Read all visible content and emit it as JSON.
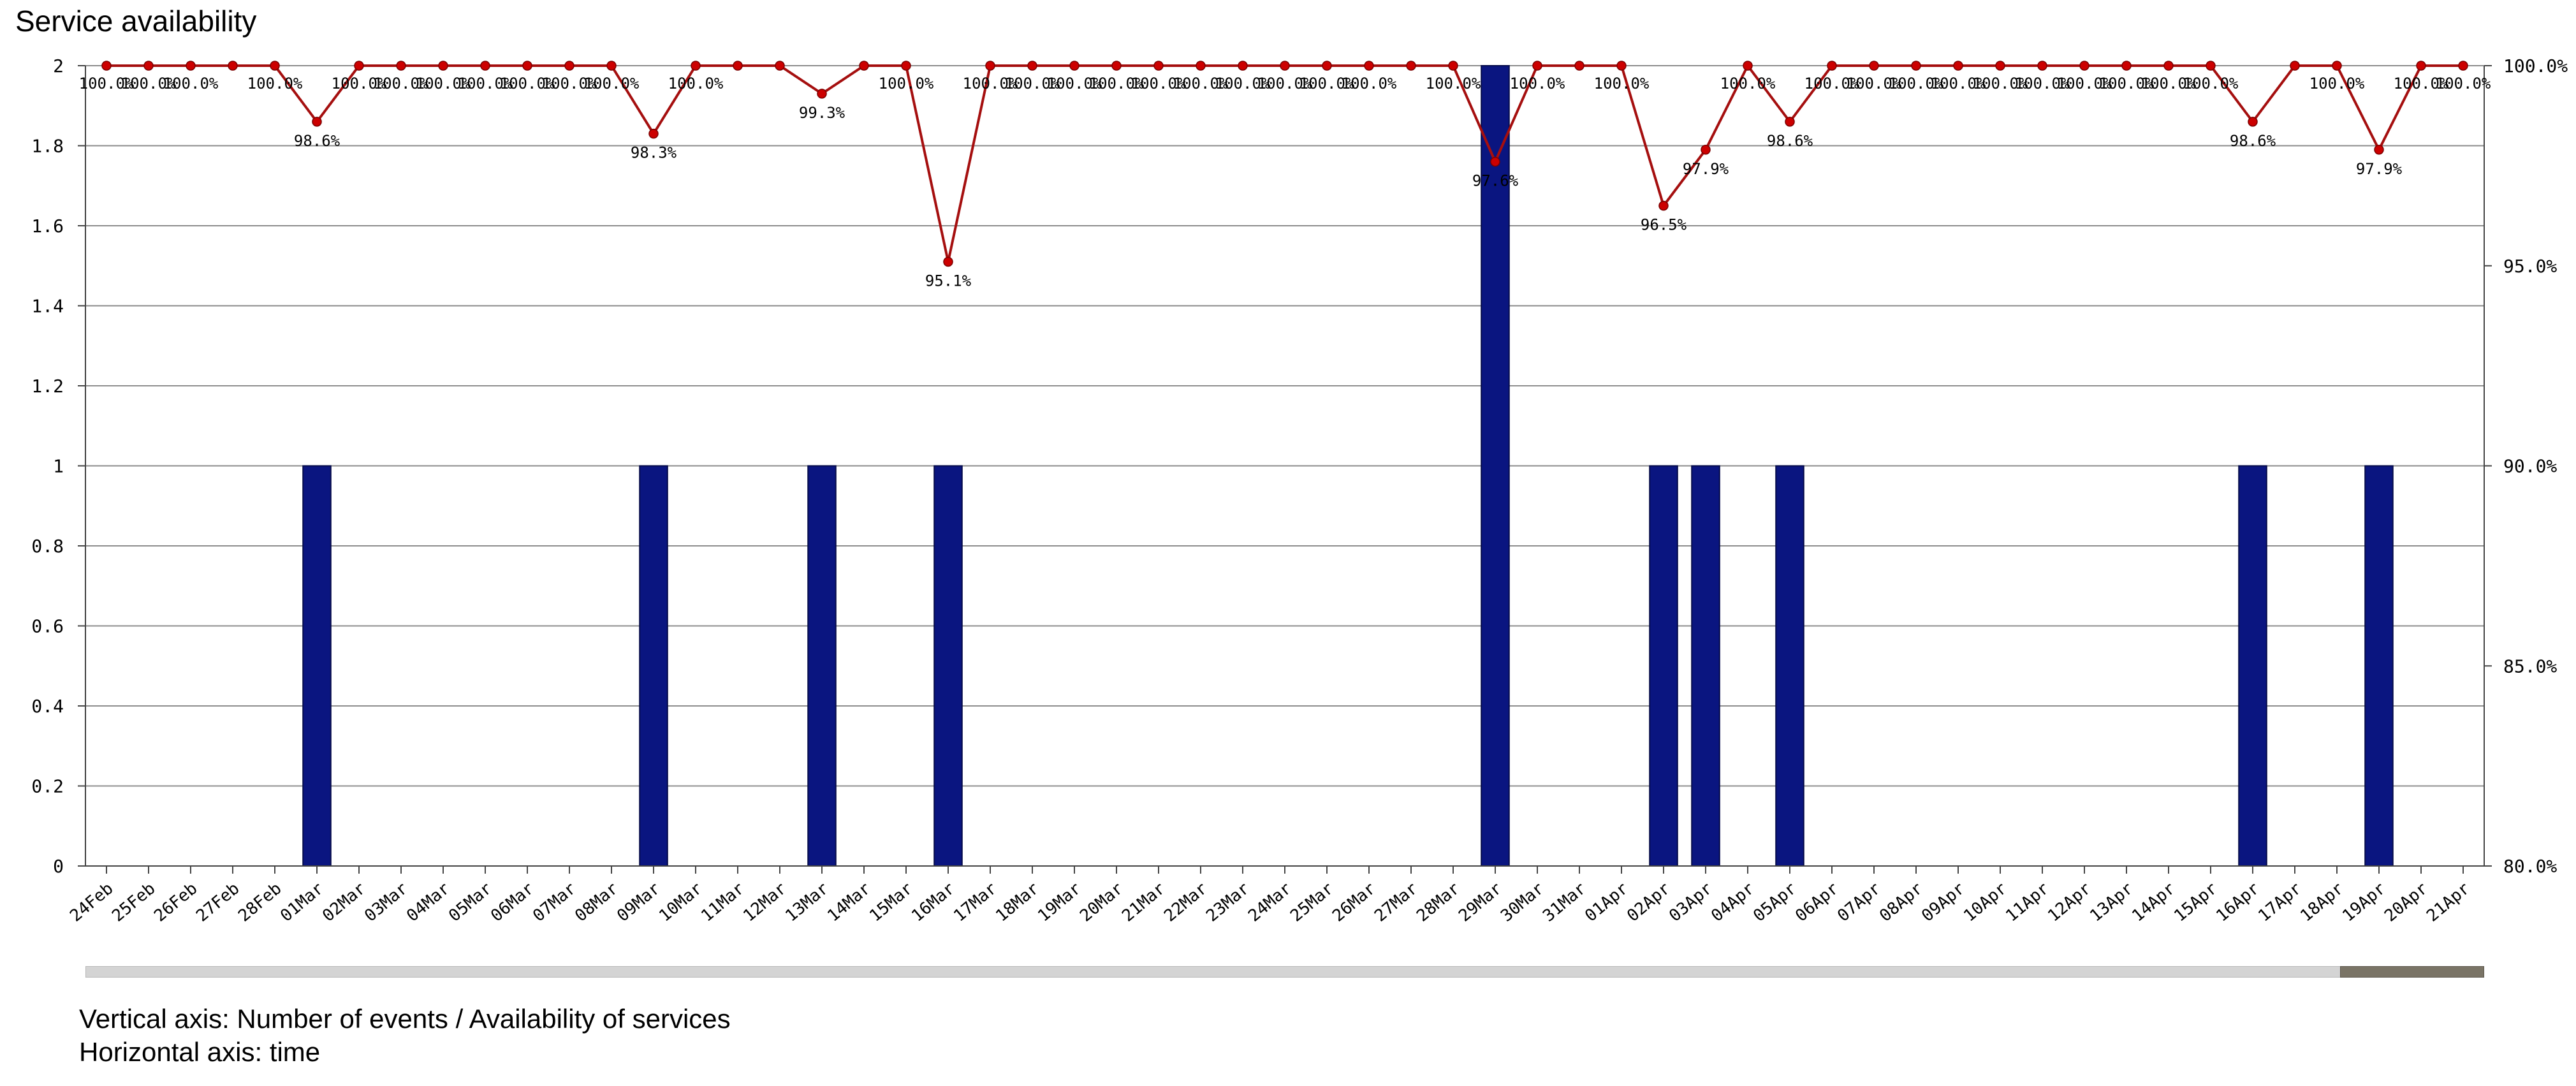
{
  "chart_data": {
    "type": "bar+line",
    "title": "Service availability",
    "categories": [
      "24Feb",
      "25Feb",
      "26Feb",
      "27Feb",
      "28Feb",
      "01Mar",
      "02Mar",
      "03Mar",
      "04Mar",
      "05Mar",
      "06Mar",
      "07Mar",
      "08Mar",
      "09Mar",
      "10Mar",
      "11Mar",
      "12Mar",
      "13Mar",
      "14Mar",
      "15Mar",
      "16Mar",
      "17Mar",
      "18Mar",
      "19Mar",
      "20Mar",
      "21Mar",
      "22Mar",
      "23Mar",
      "24Mar",
      "25Mar",
      "26Mar",
      "27Mar",
      "28Mar",
      "29Mar",
      "30Mar",
      "31Mar",
      "01Apr",
      "02Apr",
      "03Apr",
      "04Apr",
      "05Apr",
      "06Apr",
      "07Apr",
      "08Apr",
      "09Apr",
      "10Apr",
      "11Apr",
      "12Apr",
      "13Apr",
      "14Apr",
      "15Apr",
      "16Apr",
      "17Apr",
      "18Apr",
      "19Apr",
      "20Apr",
      "21Apr"
    ],
    "series": [
      {
        "type": "bar",
        "axis": "left",
        "values": [
          0,
          0,
          0,
          0,
          0,
          1,
          0,
          0,
          0,
          0,
          0,
          0,
          0,
          1,
          0,
          0,
          0,
          1,
          0,
          0,
          1,
          0,
          0,
          0,
          0,
          0,
          0,
          0,
          0,
          0,
          0,
          0,
          0,
          2,
          0,
          0,
          0,
          1,
          1,
          0,
          1,
          0,
          0,
          0,
          0,
          0,
          0,
          0,
          0,
          0,
          0,
          1,
          0,
          0,
          1,
          0,
          0
        ]
      },
      {
        "type": "line",
        "axis": "right",
        "values": [
          100,
          100,
          100,
          100,
          100,
          98.6,
          100,
          100,
          100,
          100,
          100,
          100,
          100,
          98.3,
          100,
          100,
          100,
          99.3,
          100,
          100,
          95.1,
          100,
          100,
          100,
          100,
          100,
          100,
          100,
          100,
          100,
          100,
          100,
          100,
          97.6,
          100,
          100,
          100,
          96.5,
          97.9,
          100,
          98.6,
          100,
          100,
          100,
          100,
          100,
          100,
          100,
          100,
          100,
          100,
          98.6,
          100,
          100,
          97.9,
          100,
          100
        ],
        "labels": [
          "100.0%",
          "100.0%",
          "100.0%",
          "",
          "100.0%",
          "98.6%",
          "100.0%",
          "100.0%",
          "100.0%",
          "100.0%",
          "100.0%",
          "100.0%",
          "100.0%",
          "98.3%",
          "100.0%",
          "",
          "",
          "99.3%",
          "",
          "100.0%",
          "95.1%",
          "100.0%",
          "100.0%",
          "100.0%",
          "100.0%",
          "100.0%",
          "100.0%",
          "100.0%",
          "100.0%",
          "100.0%",
          "100.0%",
          "",
          "100.0%",
          "97.6%",
          "100.0%",
          "",
          "100.0%",
          "96.5%",
          "97.9%",
          "100.0%",
          "98.6%",
          "100.0%",
          "100.0%",
          "100.0%",
          "100.0%",
          "100.0%",
          "100.0%",
          "100.0%",
          "100.0%",
          "100.0%",
          "100.0%",
          "98.6%",
          "",
          "100.0%",
          "97.9%",
          "100.0%",
          "100.0%"
        ]
      }
    ],
    "y_left": {
      "ticks": [
        "2",
        "1.8",
        "1.6",
        "1.4",
        "1.2",
        "1",
        "0.8",
        "0.6",
        "0.4",
        "0.2",
        "0"
      ],
      "range": [
        0,
        2
      ]
    },
    "y_right": {
      "ticks": [
        "100.0%",
        "95.0%",
        "90.0%",
        "85.0%",
        "80.0%"
      ],
      "range": [
        80,
        100
      ]
    },
    "grid": true,
    "colors": {
      "bars": "#0a1580",
      "line": "#a50f0f",
      "marker": "#cc0000",
      "grid": "#8c8c8c"
    }
  },
  "caption": {
    "vertical": "Vertical axis: Number of events  / Availability of services",
    "horizontal": "Horizontal axis: time"
  }
}
